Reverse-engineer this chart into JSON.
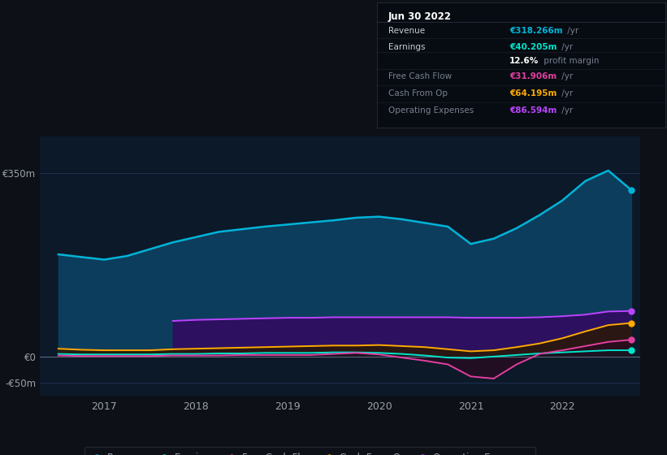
{
  "background_color": "#0d1117",
  "plot_bg_color": "#0c1929",
  "grid_color": "#1e3050",
  "text_color": "#9aa0aa",
  "zero_line_color": "#8899aa",
  "x_years": [
    2016.5,
    2016.75,
    2017.0,
    2017.25,
    2017.5,
    2017.75,
    2018.0,
    2018.25,
    2018.5,
    2018.75,
    2019.0,
    2019.25,
    2019.5,
    2019.75,
    2020.0,
    2020.25,
    2020.5,
    2020.75,
    2021.0,
    2021.25,
    2021.5,
    2021.75,
    2022.0,
    2022.25,
    2022.5,
    2022.75
  ],
  "revenue": [
    195,
    190,
    185,
    192,
    205,
    218,
    228,
    238,
    243,
    248,
    252,
    256,
    260,
    265,
    267,
    262,
    255,
    248,
    215,
    225,
    245,
    270,
    298,
    335,
    355,
    318
  ],
  "earnings": [
    5,
    4,
    4,
    4,
    4,
    5,
    5,
    6,
    6,
    7,
    7,
    7,
    8,
    8,
    7,
    5,
    2,
    -2,
    -3,
    0,
    3,
    6,
    8,
    10,
    12,
    12
  ],
  "free_cash_flow": [
    2,
    1,
    1,
    1,
    1,
    2,
    2,
    2,
    3,
    3,
    3,
    3,
    5,
    7,
    4,
    -2,
    -8,
    -15,
    -38,
    -42,
    -15,
    5,
    12,
    20,
    28,
    32
  ],
  "cash_from_op": [
    15,
    13,
    12,
    12,
    12,
    14,
    15,
    16,
    17,
    18,
    19,
    20,
    21,
    21,
    22,
    20,
    18,
    14,
    10,
    12,
    18,
    25,
    35,
    48,
    60,
    64
  ],
  "operating_expenses_x": [
    2017.75,
    2018.0,
    2018.25,
    2018.5,
    2018.75,
    2019.0,
    2019.25,
    2019.5,
    2019.75,
    2020.0,
    2020.25,
    2020.5,
    2020.75,
    2021.0,
    2021.25,
    2021.5,
    2021.75,
    2022.0,
    2022.25,
    2022.5,
    2022.75
  ],
  "operating_expenses": [
    68,
    70,
    71,
    72,
    73,
    74,
    74,
    75,
    75,
    75,
    75,
    75,
    75,
    74,
    74,
    74,
    75,
    77,
    80,
    86,
    87
  ],
  "revenue_color": "#00b4d8",
  "earnings_color": "#00e5cc",
  "free_cash_flow_color": "#e040a0",
  "cash_from_op_color": "#ffaa00",
  "operating_expenses_color": "#bb44ff",
  "revenue_fill": "#0d3d5c",
  "earnings_fill": "#0d3d5c",
  "operating_expenses_fill": "#2d1060",
  "cash_from_op_fill": "#2a1a00",
  "free_cash_flow_fill": "#2a0a20",
  "ylim": [
    -75,
    420
  ],
  "ytick_values": [
    -50,
    0,
    350
  ],
  "ytick_labels": [
    "-€50m",
    "€0",
    "€350m"
  ],
  "x_tick_years": [
    2017,
    2018,
    2019,
    2020,
    2021,
    2022
  ],
  "legend_items": [
    {
      "label": "Revenue",
      "color": "#00b4d8"
    },
    {
      "label": "Earnings",
      "color": "#00e5cc"
    },
    {
      "label": "Free Cash Flow",
      "color": "#e040a0"
    },
    {
      "label": "Cash From Op",
      "color": "#ffaa00"
    },
    {
      "label": "Operating Expenses",
      "color": "#bb44ff"
    }
  ]
}
